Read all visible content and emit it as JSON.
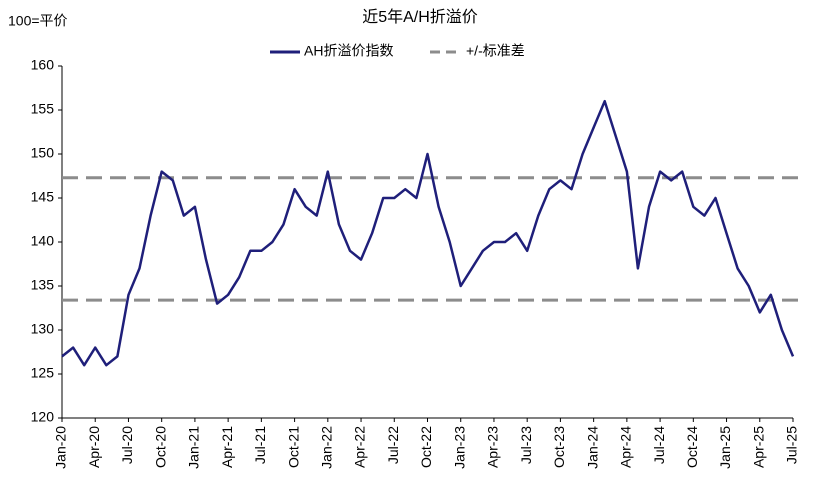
{
  "chart_data": {
    "type": "line",
    "title": "近5年A/H折溢价",
    "y_label": "100=平价",
    "categories": [
      "Jan-20",
      null,
      null,
      "Apr-20",
      null,
      null,
      "Jul-20",
      null,
      null,
      "Oct-20",
      null,
      null,
      "Jan-21",
      null,
      null,
      "Apr-21",
      null,
      null,
      "Jul-21",
      null,
      null,
      "Oct-21",
      null,
      null,
      "Jan-22",
      null,
      null,
      "Apr-22",
      null,
      null,
      "Jul-22",
      null,
      null,
      "Oct-22",
      null,
      null,
      "Jan-23",
      null,
      null,
      "Apr-23",
      null,
      null,
      "Jul-23",
      null,
      null,
      "Oct-23",
      null,
      null,
      "Jan-24",
      null,
      null,
      "Apr-24",
      null,
      null,
      "Jul-24",
      null,
      null,
      "Oct-24",
      null,
      null,
      "Jan-25",
      null,
      null,
      "Apr-25",
      null,
      null,
      "Jul-25"
    ],
    "series": [
      {
        "name": "AH折溢价指数",
        "color": "#1f1f7a",
        "values": [
          127,
          128,
          126,
          128,
          126,
          127,
          134,
          137,
          143,
          148,
          147,
          143,
          144,
          138,
          133,
          134,
          136,
          139,
          139,
          140,
          142,
          146,
          144,
          143,
          148,
          142,
          139,
          138,
          141,
          145,
          145,
          146,
          145,
          150,
          144,
          140,
          135,
          137,
          139,
          140,
          140,
          141,
          139,
          143,
          146,
          147,
          146,
          150,
          153,
          156,
          152,
          148,
          137,
          144,
          148,
          147,
          148,
          144,
          143,
          145,
          141,
          137,
          135,
          132,
          134,
          130,
          127
        ]
      }
    ],
    "std_lines": {
      "name": "+/-标准差",
      "color": "#8c8c8c",
      "values": [
        147.3,
        133.4
      ]
    },
    "ylim": [
      120,
      160
    ],
    "yticks": [
      120,
      125,
      130,
      135,
      140,
      145,
      150,
      155,
      160
    ]
  }
}
